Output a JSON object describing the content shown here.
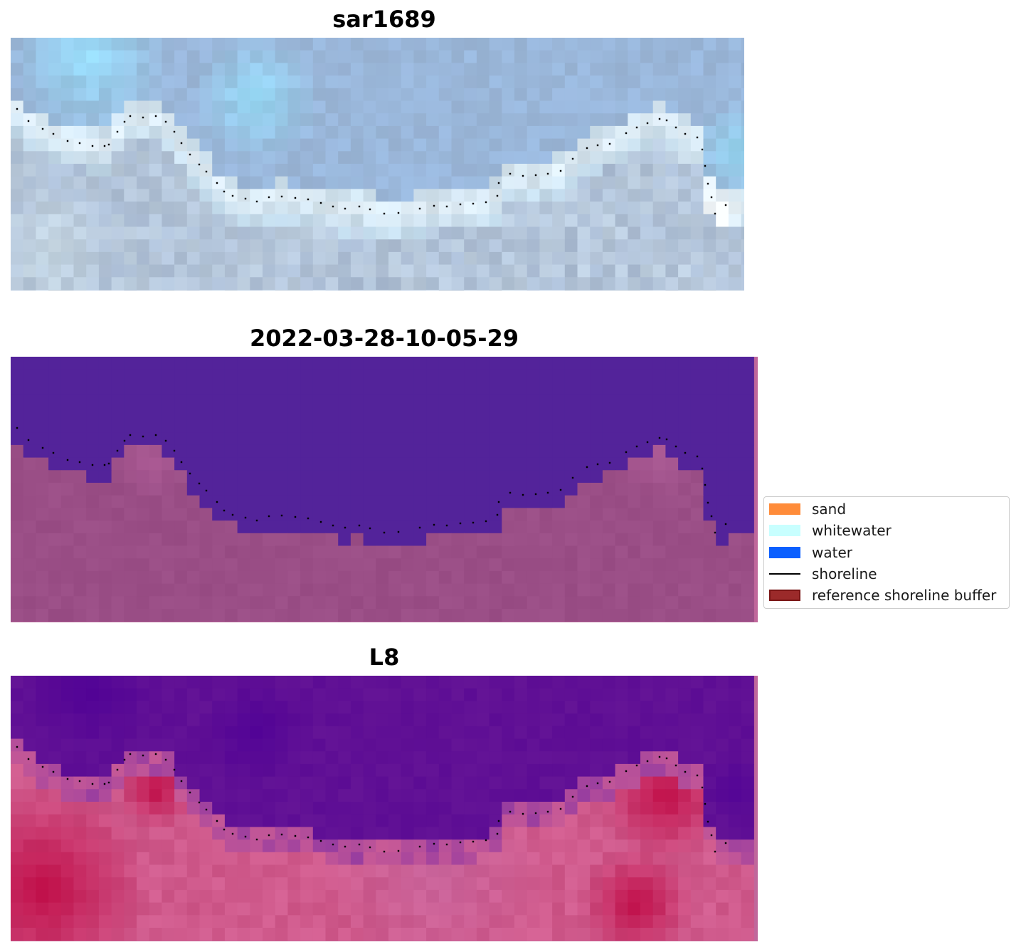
{
  "panels": [
    {
      "title": "sar1689",
      "variant": "rgb"
    },
    {
      "title": "2022-03-28-10-05-29",
      "variant": "classified"
    },
    {
      "title": "L8",
      "variant": "index"
    }
  ],
  "legend": {
    "items": [
      {
        "label": "sand",
        "kind": "patch",
        "color": "#ff8c3a"
      },
      {
        "label": "whitewater",
        "kind": "patch",
        "color": "#c8ffff"
      },
      {
        "label": "water",
        "kind": "patch",
        "color": "#0a5fff"
      },
      {
        "label": "shoreline",
        "kind": "line",
        "color": "#000000"
      },
      {
        "label": "reference shoreline buffer",
        "kind": "patch",
        "color": "#9b2a2a"
      }
    ]
  },
  "colors": {
    "buffer_overlay": "#c0679b",
    "class_water": "#53239a",
    "class_land": "#964a82",
    "shoreline": "#000000"
  }
}
